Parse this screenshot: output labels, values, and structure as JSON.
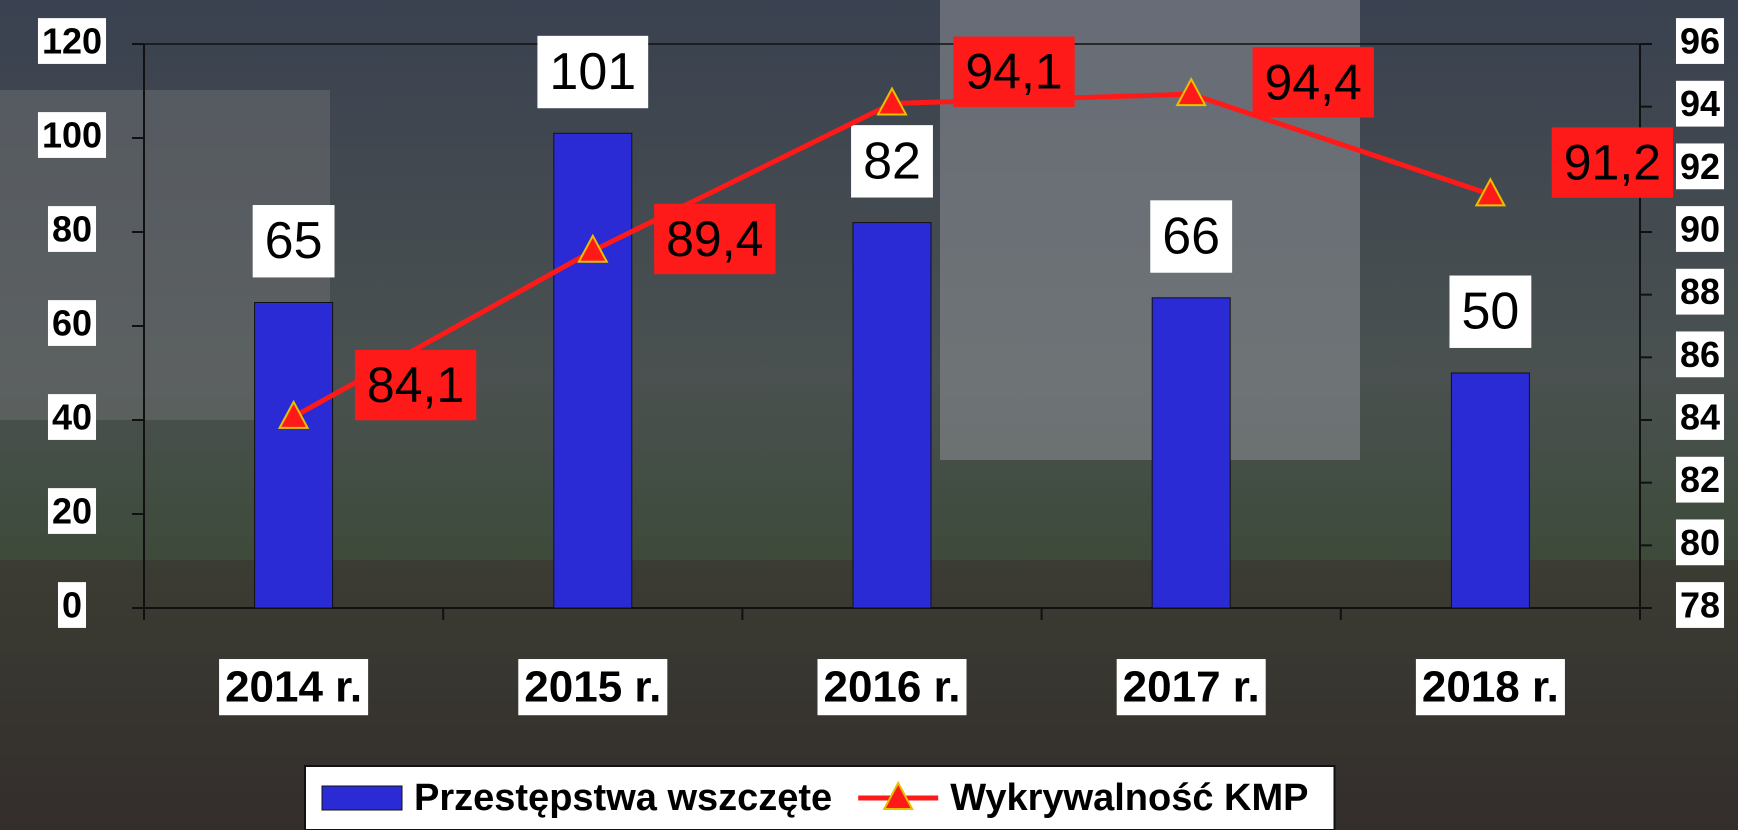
{
  "chart_data": {
    "type": "bar_line",
    "categories": [
      "2014 r.",
      "2015 r.",
      "2016 r.",
      "2017 r.",
      "2018 r."
    ],
    "series": [
      {
        "name": "Przestępstwa wszczęte",
        "color": "#2b2bd6",
        "type": "bar",
        "values": [
          65,
          101,
          82,
          66,
          50
        ]
      },
      {
        "name": "Wykrywalność KMP",
        "color": "#ff1a1a",
        "type": "line",
        "axis": "y2",
        "values": [
          84.1,
          89.4,
          94.1,
          94.4,
          91.2
        ],
        "value_labels": [
          "84,1",
          "89,4",
          "94,1",
          "94,4",
          "91,2"
        ]
      }
    ],
    "ylim": [
      0,
      120
    ],
    "yticks": [
      0,
      20,
      40,
      60,
      80,
      100,
      120
    ],
    "y2lim": [
      78,
      96
    ],
    "y2ticks": [
      78,
      80,
      82,
      84,
      86,
      88,
      90,
      92,
      94,
      96
    ],
    "legend": "bottom"
  }
}
